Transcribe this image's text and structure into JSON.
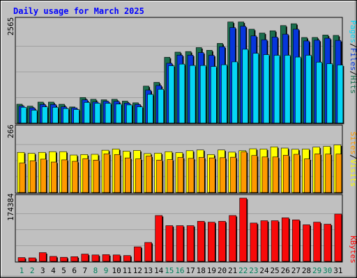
{
  "chart_data": {
    "type": "bar",
    "title": "Daily usage for March 2025",
    "categories": [
      "1",
      "2",
      "3",
      "4",
      "5",
      "6",
      "7",
      "8",
      "9",
      "10",
      "11",
      "12",
      "13",
      "14",
      "15",
      "16",
      "17",
      "18",
      "19",
      "20",
      "21",
      "22",
      "23",
      "24",
      "25",
      "26",
      "27",
      "28",
      "29",
      "30",
      "31"
    ],
    "weekend_days": [
      1,
      2,
      8,
      9,
      15,
      16,
      22,
      23,
      29,
      30
    ],
    "panels": [
      {
        "id": "hits",
        "max_label": "2565",
        "ylim": [
          0,
          2565
        ],
        "legend": [
          "Pages",
          "Files",
          "Hits"
        ],
        "series": [
          {
            "name": "Hits",
            "color": "#1b6e4e",
            "values": [
              472,
              424,
              525,
              525,
              471,
              403,
              641,
              596,
              583,
              596,
              550,
              508,
              927,
              1021,
              1650,
              1780,
              1795,
              1894,
              1825,
              1999,
              2537,
              2537,
              2356,
              2259,
              2316,
              2447,
              2493,
              2147,
              2148,
              2209,
              2200
            ]
          },
          {
            "name": "Files",
            "color": "#0636dc",
            "values": [
              424,
              381,
              466,
              466,
              407,
              381,
              583,
              528,
              546,
              544,
              500,
              466,
              825,
              941,
              1501,
              1705,
              1705,
              1768,
              1700,
              1916,
              2397,
              2429,
              2187,
              2091,
              2159,
              2231,
              2356,
              2061,
              2079,
              2128,
              2074
            ]
          },
          {
            "name": "Pages",
            "color": "#05d6f5",
            "values": [
              395,
              322,
              407,
              395,
              364,
              339,
              517,
              496,
              495,
              476,
              455,
              407,
              720,
              848,
              1438,
              1480,
              1446,
              1445,
              1420,
              1463,
              1536,
              1852,
              1750,
              1716,
              1700,
              1701,
              1656,
              1701,
              1527,
              1488,
              1456
            ]
          }
        ]
      },
      {
        "id": "visits",
        "max_label": "266",
        "ylim": [
          0,
          266
        ],
        "legend": [
          "Sites",
          "Visits"
        ],
        "series": [
          {
            "name": "Visits",
            "color": "#ffff00",
            "values": [
              167,
              163,
              167,
              170,
              170,
              156,
              158,
              159,
              176,
              181,
              172,
              175,
              162,
              164,
              170,
              166,
              174,
              177,
              158,
              177,
              168,
              174,
              182,
              181,
              190,
              185,
              180,
              181,
              189,
              192,
              198
            ]
          },
          {
            "name": "Sites",
            "color": "#ff9900",
            "values": [
              123,
              132,
              139,
              127,
              136,
              130,
              141,
              135,
              161,
              158,
              144,
              140,
              152,
              135,
              137,
              146,
              142,
              146,
              144,
              145,
              147,
              169,
              154,
              148,
              148,
              155,
              159,
              140,
              161,
              160,
              160
            ]
          }
        ]
      },
      {
        "id": "kbytes",
        "max_label": "174384",
        "ylim": [
          0,
          174384
        ],
        "legend": [
          "KBytes"
        ],
        "series": [
          {
            "name": "KBytes",
            "color": "#f80a0a",
            "values": [
              10400,
              9600,
              24000,
              13600,
              11200,
              12800,
              20000,
              17600,
              18400,
              17600,
              16000,
              40000,
              52000,
              126400,
              98400,
              98400,
              98400,
              110400,
              108000,
              110400,
              126400,
              174384,
              105600,
              112000,
              112000,
              120000,
              114400,
              100800,
              108000,
              102400,
              130400
            ]
          }
        ]
      }
    ]
  }
}
